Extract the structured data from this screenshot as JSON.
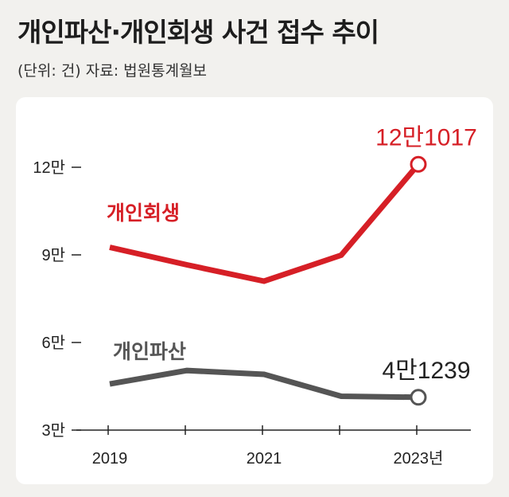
{
  "header": {
    "title": "개인파산·개인회생 사건 접수 추이",
    "subtitle": "(단위: 건) 자료: 법원통계월보"
  },
  "colors": {
    "rehabilitation": "#d61f26",
    "bankruptcy": "#555555",
    "background": "#f2f1ee",
    "panel": "#ffffff"
  },
  "chart_data": {
    "type": "line",
    "x": [
      2019,
      2020,
      2021,
      2022,
      2023
    ],
    "x_tick_labels": [
      "2019",
      "2021",
      "2023년"
    ],
    "x_tick_label_values": [
      2019,
      2021,
      2023
    ],
    "ylim": [
      30000,
      132000
    ],
    "y_ticks": [
      30000,
      60000,
      90000,
      120000
    ],
    "y_tick_labels": [
      "3만",
      "6만",
      "9만",
      "12만"
    ],
    "grid": false,
    "series": [
      {
        "name": "개인회생",
        "values": [
          92600,
          86600,
          81000,
          89900,
          121017
        ],
        "end_label": "12만1017",
        "color": "#d61f26"
      },
      {
        "name": "개인파산",
        "values": [
          45800,
          50400,
          49100,
          41600,
          41239
        ],
        "end_label": "4만1239",
        "color": "#555555"
      }
    ]
  }
}
